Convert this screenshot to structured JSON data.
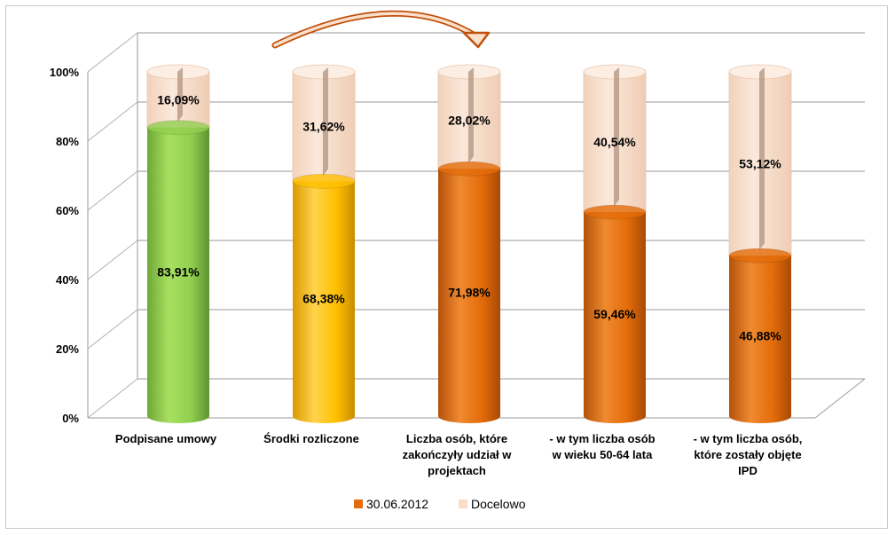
{
  "chart_data": {
    "type": "bar",
    "stacked": true,
    "style": "3d-cylinder",
    "categories": [
      "Podpisane umowy",
      "Środki rozliczone",
      "Liczba osób, które zakończyły udział w projektach",
      "- w tym liczba osób w wieku 50-64 lata",
      "- w tym liczba osób, które zostały objęte IPD"
    ],
    "category_lines": [
      [
        "Podpisane umowy"
      ],
      [
        "Środki rozliczone"
      ],
      [
        "Liczba osób, które",
        "zakończyły udział w",
        "projektach"
      ],
      [
        "- w tym liczba osób",
        "w wieku 50-64 lata"
      ],
      [
        "- w tym liczba osób,",
        "które zostały objęte",
        "IPD"
      ]
    ],
    "series": [
      {
        "name": "30.06.2012",
        "values": [
          83.91,
          68.38,
          71.98,
          59.46,
          46.88
        ]
      },
      {
        "name": "Docelowo",
        "values": [
          16.09,
          31.62,
          28.02,
          40.54,
          53.12
        ]
      }
    ],
    "data_labels": {
      "30.06.2012": [
        "83,91%",
        "68,38%",
        "71,98%",
        "59,46%",
        "46,88%"
      ],
      "Docelowo": [
        "16,09%",
        "31,62%",
        "28,02%",
        "40,54%",
        "53,12%"
      ]
    },
    "bar_colors": [
      "#92d050",
      "#ffc000",
      "#e46c0a",
      "#e46c0a",
      "#e46c0a"
    ],
    "target_color": "#f8ddc8",
    "legend_colors": [
      "#e46c0a",
      "#f8ddc8"
    ],
    "y_ticks": [
      "0%",
      "20%",
      "40%",
      "60%",
      "80%",
      "100%"
    ],
    "ylim": [
      0,
      100
    ],
    "grid": true,
    "legend_position": "bottom",
    "annotation": "curved arrow from second to third bar"
  }
}
